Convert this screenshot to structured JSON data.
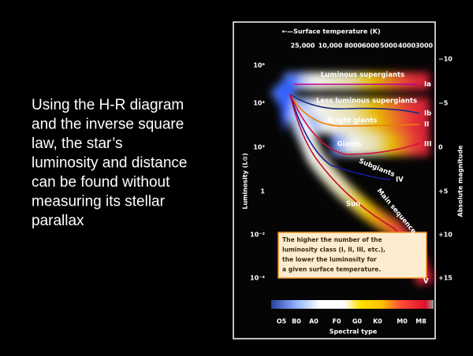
{
  "slide": {
    "body_lines": [
      "Using the H-R diagram",
      "and the inverse square",
      "law, the star’s",
      "luminosity and distance",
      "can be found without",
      "measuring its stellar",
      "parallax"
    ]
  },
  "diagram": {
    "top_axis_title": "←—Surface temperature (K)",
    "temperatures": [
      "25,000",
      "10,000",
      "8000",
      "6000",
      "5000",
      "4000",
      "3000"
    ],
    "luminosity_ticks": [
      "10⁶",
      "10⁴",
      "10²",
      "1",
      "10⁻²",
      "10⁻⁴"
    ],
    "magnitude_ticks": [
      "−10",
      "−5",
      "0",
      "+5",
      "+10",
      "+15"
    ],
    "left_axis_title": "Luminosity (L⊙)",
    "right_axis_title": "Absolute magnitude",
    "spectral_types": [
      "O5",
      "B0",
      "A0",
      "F0",
      "G0",
      "K0",
      "M0",
      "M8"
    ],
    "bottom_axis_title": "Spectral type",
    "region_labels": [
      "Luminous supergiants",
      "Less luminous supergiants",
      "Bright giants",
      "Giants",
      "Subgiants",
      "Main sequence",
      "Sun"
    ],
    "class_labels": [
      "Ia",
      "Ib",
      "II",
      "III",
      "IV",
      "V"
    ],
    "note_lines": [
      "The higher the number of the",
      "luminosity class (I, II, III, etc.),",
      "the lower the luminosity for",
      "a given surface temperature."
    ]
  }
}
